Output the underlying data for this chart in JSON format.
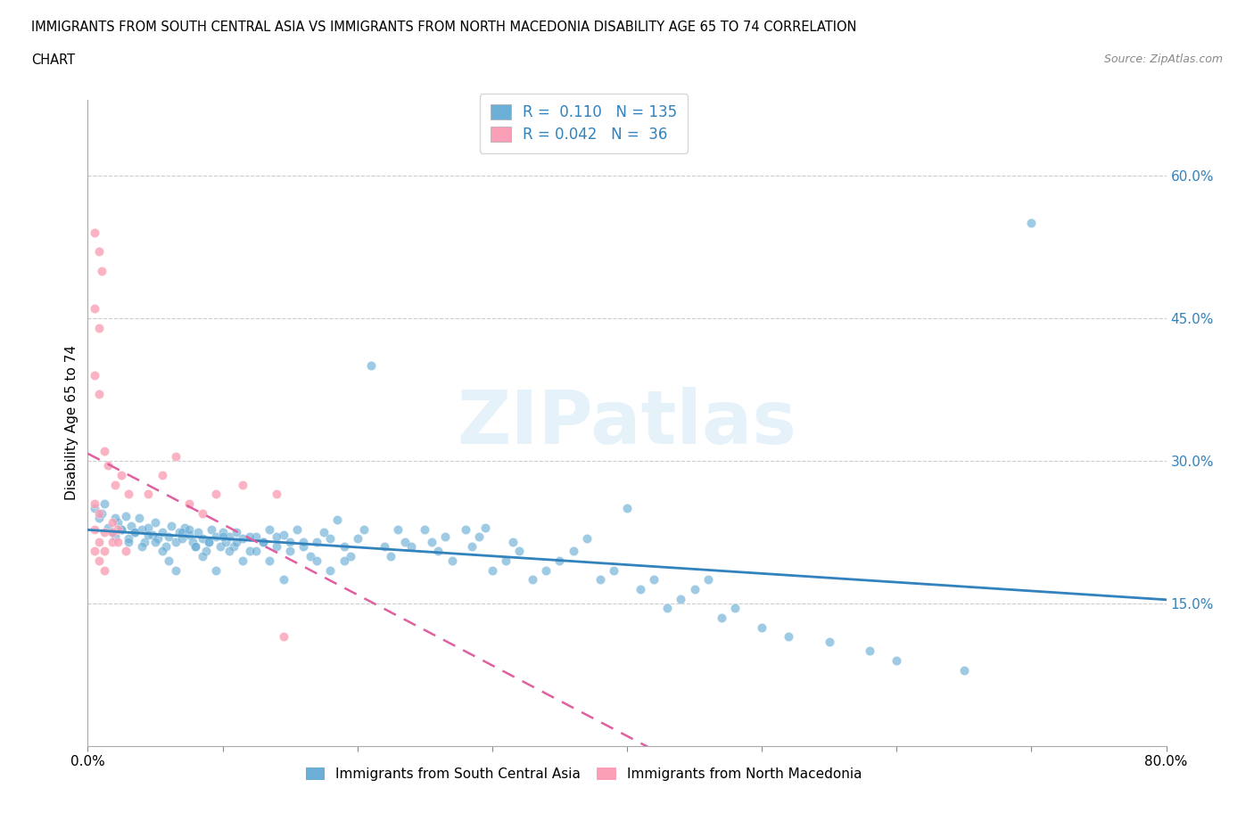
{
  "title_line1": "IMMIGRANTS FROM SOUTH CENTRAL ASIA VS IMMIGRANTS FROM NORTH MACEDONIA DISABILITY AGE 65 TO 74 CORRELATION",
  "title_line2": "CHART",
  "source": "Source: ZipAtlas.com",
  "ylabel": "Disability Age 65 to 74",
  "xmin": 0.0,
  "xmax": 0.8,
  "ymin": 0.0,
  "ymax": 0.68,
  "yticks": [
    0.15,
    0.3,
    0.45,
    0.6
  ],
  "ytick_labels": [
    "15.0%",
    "30.0%",
    "45.0%",
    "60.0%"
  ],
  "xticks": [
    0.0,
    0.1,
    0.2,
    0.3,
    0.4,
    0.5,
    0.6,
    0.7,
    0.8
  ],
  "xtick_labels": [
    "0.0%",
    "",
    "",
    "",
    "",
    "",
    "",
    "",
    "80.0%"
  ],
  "legend1_label": "Immigrants from South Central Asia",
  "legend2_label": "Immigrants from North Macedonia",
  "R1": 0.11,
  "N1": 135,
  "R2": 0.042,
  "N2": 36,
  "color1": "#6baed6",
  "color2": "#fa9fb5",
  "line1_color": "#3182bd",
  "line2_color": "#e05fa0",
  "watermark": "ZIPatlas",
  "scatter1_x": [
    0.005,
    0.008,
    0.01,
    0.012,
    0.015,
    0.018,
    0.02,
    0.022,
    0.025,
    0.028,
    0.03,
    0.032,
    0.035,
    0.038,
    0.04,
    0.042,
    0.045,
    0.048,
    0.05,
    0.052,
    0.055,
    0.058,
    0.06,
    0.062,
    0.065,
    0.068,
    0.07,
    0.072,
    0.075,
    0.078,
    0.08,
    0.082,
    0.085,
    0.088,
    0.09,
    0.092,
    0.095,
    0.098,
    0.1,
    0.102,
    0.105,
    0.108,
    0.11,
    0.115,
    0.12,
    0.125,
    0.13,
    0.135,
    0.14,
    0.145,
    0.15,
    0.155,
    0.16,
    0.165,
    0.17,
    0.175,
    0.18,
    0.185,
    0.19,
    0.195,
    0.2,
    0.205,
    0.21,
    0.22,
    0.225,
    0.23,
    0.235,
    0.24,
    0.25,
    0.255,
    0.26,
    0.265,
    0.27,
    0.28,
    0.285,
    0.29,
    0.295,
    0.3,
    0.31,
    0.315,
    0.32,
    0.33,
    0.34,
    0.35,
    0.36,
    0.37,
    0.38,
    0.39,
    0.4,
    0.41,
    0.42,
    0.43,
    0.44,
    0.45,
    0.46,
    0.47,
    0.48,
    0.5,
    0.52,
    0.55,
    0.58,
    0.6,
    0.65,
    0.02,
    0.025,
    0.03,
    0.035,
    0.04,
    0.045,
    0.05,
    0.055,
    0.06,
    0.065,
    0.07,
    0.075,
    0.08,
    0.085,
    0.09,
    0.095,
    0.1,
    0.105,
    0.11,
    0.115,
    0.12,
    0.125,
    0.13,
    0.135,
    0.14,
    0.145,
    0.15,
    0.16,
    0.17,
    0.18,
    0.19,
    0.7
  ],
  "scatter1_y": [
    0.25,
    0.24,
    0.245,
    0.255,
    0.23,
    0.225,
    0.22,
    0.235,
    0.228,
    0.242,
    0.218,
    0.232,
    0.225,
    0.24,
    0.228,
    0.215,
    0.23,
    0.222,
    0.235,
    0.218,
    0.225,
    0.21,
    0.22,
    0.232,
    0.215,
    0.225,
    0.218,
    0.23,
    0.222,
    0.215,
    0.21,
    0.225,
    0.218,
    0.205,
    0.215,
    0.228,
    0.22,
    0.21,
    0.225,
    0.215,
    0.22,
    0.21,
    0.225,
    0.218,
    0.205,
    0.22,
    0.215,
    0.228,
    0.21,
    0.222,
    0.215,
    0.228,
    0.21,
    0.2,
    0.215,
    0.225,
    0.218,
    0.238,
    0.21,
    0.2,
    0.218,
    0.228,
    0.4,
    0.21,
    0.2,
    0.228,
    0.215,
    0.21,
    0.228,
    0.215,
    0.205,
    0.22,
    0.195,
    0.228,
    0.21,
    0.22,
    0.23,
    0.185,
    0.195,
    0.215,
    0.205,
    0.175,
    0.185,
    0.195,
    0.205,
    0.218,
    0.175,
    0.185,
    0.25,
    0.165,
    0.175,
    0.145,
    0.155,
    0.165,
    0.175,
    0.135,
    0.145,
    0.125,
    0.115,
    0.11,
    0.1,
    0.09,
    0.08,
    0.24,
    0.228,
    0.215,
    0.225,
    0.21,
    0.222,
    0.215,
    0.205,
    0.195,
    0.185,
    0.225,
    0.228,
    0.21,
    0.2,
    0.215,
    0.185,
    0.22,
    0.205,
    0.215,
    0.195,
    0.22,
    0.205,
    0.215,
    0.195,
    0.22,
    0.175,
    0.205,
    0.215,
    0.195,
    0.185,
    0.195,
    0.55
  ],
  "scatter2_x": [
    0.005,
    0.008,
    0.01,
    0.005,
    0.008,
    0.005,
    0.008,
    0.012,
    0.015,
    0.02,
    0.025,
    0.03,
    0.005,
    0.008,
    0.012,
    0.018,
    0.045,
    0.055,
    0.065,
    0.075,
    0.085,
    0.095,
    0.115,
    0.145,
    0.005,
    0.008,
    0.012,
    0.018,
    0.022,
    0.005,
    0.008,
    0.012,
    0.018,
    0.022,
    0.028,
    0.14
  ],
  "scatter2_y": [
    0.54,
    0.52,
    0.5,
    0.46,
    0.44,
    0.39,
    0.37,
    0.31,
    0.295,
    0.275,
    0.285,
    0.265,
    0.255,
    0.245,
    0.225,
    0.235,
    0.265,
    0.285,
    0.305,
    0.255,
    0.245,
    0.265,
    0.275,
    0.115,
    0.228,
    0.215,
    0.205,
    0.215,
    0.228,
    0.205,
    0.195,
    0.185,
    0.225,
    0.215,
    0.205,
    0.265
  ]
}
